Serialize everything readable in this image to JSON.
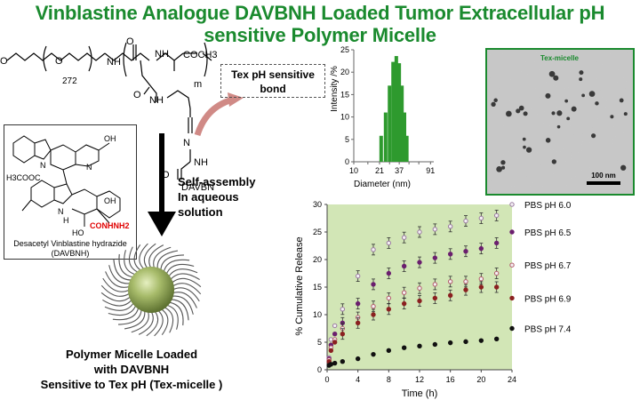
{
  "title": {
    "line1": "Vinblastine Analogue DAVBNH Loaded Tumor Extracellular pH",
    "line2": "sensitive Polymer Micelle"
  },
  "structure": {
    "peg_repeat": "272",
    "m_label": "m",
    "nh": "NH",
    "cooch3": "COCH3",
    "nn": "N",
    "nnh": "NH",
    "o": "O",
    "o2": "O",
    "davbn": "DAVBN",
    "sensitive_box": "Tex pH sensitive bond"
  },
  "drug": {
    "oh": "OH",
    "n1": "N",
    "n2": "N",
    "h3cooc": "H3COOC",
    "hn": "H",
    "oh2": "OH",
    "ho": "HO",
    "conhnh2": "CONHNH2",
    "n3": "N",
    "name1": "Desacetyl Vinblastine hydrazide",
    "name2": "(DAVBNH)"
  },
  "assembly": {
    "line1": "Self-assembly",
    "line2": "In aqueous",
    "line3": "solution"
  },
  "micelle_label": {
    "line1": "Polymer Micelle  Loaded",
    "line2": "with DAVBNH",
    "line3": "Sensitive to Tex pH (Tex-micelle )"
  },
  "tem": {
    "label": "Tex-micelle",
    "scale": "100 nm"
  },
  "chart_data": [
    {
      "type": "bar",
      "xlabel": "Diameter (nm)",
      "ylabel": "Intensity /%",
      "x_ticks": [
        "10",
        "15",
        "21",
        "28",
        "37",
        "49",
        "65",
        "91"
      ],
      "xtick_labels": [
        "10",
        "",
        "21",
        "",
        "37",
        "",
        "",
        "91"
      ],
      "xtick_pos": [
        10,
        15,
        21,
        28,
        37,
        49,
        65,
        91
      ],
      "yticks": [
        0,
        5,
        10,
        15,
        20,
        25
      ],
      "ylim": [
        0,
        25
      ],
      "x": [
        22,
        25,
        28,
        31,
        34,
        37,
        40,
        43,
        46
      ],
      "values": [
        5.8,
        11,
        17,
        22.3,
        23.6,
        22,
        17,
        11,
        5.8
      ]
    },
    {
      "type": "scatter",
      "xlabel": "Time (h)",
      "ylabel": "% Cumulative Release",
      "xlim": [
        0,
        24
      ],
      "ylim": [
        0,
        30
      ],
      "xticks": [
        0,
        4,
        8,
        12,
        16,
        20,
        24
      ],
      "yticks": [
        0,
        5,
        10,
        15,
        20,
        25,
        30
      ],
      "x": [
        0.25,
        0.5,
        1,
        2,
        4,
        6,
        8,
        10,
        12,
        14,
        16,
        18,
        20,
        22,
        24
      ],
      "series": [
        {
          "name": "PBS pH 6.0",
          "color": "#9a7aa0",
          "values": [
            2.2,
            5.5,
            8.0,
            11.0,
            17.0,
            21.8,
            23.0,
            24.0,
            25.0,
            25.5,
            26.0,
            27.0,
            27.5,
            28.0,
            30.0
          ]
        },
        {
          "name": "PBS pH 6.5",
          "color": "#6b1f6e",
          "values": [
            2.0,
            4.5,
            6.5,
            8.5,
            12.0,
            15.5,
            17.5,
            18.8,
            19.5,
            20.3,
            21.0,
            21.5,
            22.0,
            23.0,
            25.0
          ]
        },
        {
          "name": "PBS pH 6.7",
          "color": "#b35a6a",
          "values": [
            1.8,
            4.0,
            5.5,
            7.5,
            9.5,
            11.5,
            13.0,
            14.0,
            14.8,
            15.5,
            16.0,
            16.0,
            16.5,
            17.5,
            19.0
          ]
        },
        {
          "name": "PBS pH 6.9",
          "color": "#8b2020",
          "values": [
            1.5,
            3.5,
            5.0,
            6.5,
            8.5,
            10.0,
            11.0,
            12.0,
            12.5,
            13.0,
            13.5,
            14.5,
            15.0,
            15.0,
            13.0
          ]
        },
        {
          "name": "PBS pH 7.4",
          "color": "#111111",
          "values": [
            0.8,
            1.0,
            1.2,
            1.5,
            2.0,
            2.8,
            3.5,
            4.0,
            4.3,
            4.6,
            4.9,
            5.1,
            5.3,
            5.6,
            7.5
          ]
        }
      ]
    }
  ]
}
